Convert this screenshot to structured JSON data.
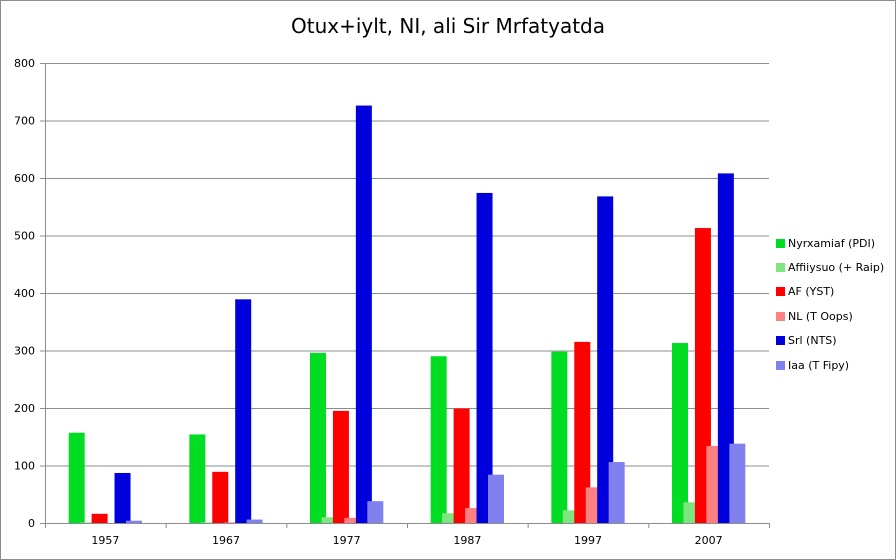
{
  "chart_data": {
    "type": "bar",
    "title": "Otux+iylt, NI, ali Sir Mrfatyatda",
    "xlabel": "",
    "ylabel": "",
    "ylim": [
      0,
      800
    ],
    "yticks": [
      0,
      100,
      200,
      300,
      400,
      500,
      600,
      700,
      800
    ],
    "grid": true,
    "legend_position": "right",
    "categories": [
      "1957",
      "1967",
      "1977",
      "1987",
      "1997",
      "2007"
    ],
    "series": [
      {
        "name": "Nyrxamiaf (PDI)",
        "color": "#00dd22",
        "values": [
          157,
          154,
          296,
          290,
          298,
          313
        ]
      },
      {
        "name": "Affiiysuo (+ Raip)",
        "color": "#7fe57f",
        "values": [
          1,
          1,
          10,
          17,
          22,
          36
        ]
      },
      {
        "name": "AF (YST)",
        "color": "#ff0000",
        "values": [
          16,
          89,
          195,
          199,
          315,
          513
        ]
      },
      {
        "name": "NL (T Oops)",
        "color": "#ff8080",
        "values": [
          0,
          1,
          9,
          26,
          62,
          134
        ]
      },
      {
        "name": "Srl (NTS)",
        "color": "#0000dd",
        "values": [
          87,
          389,
          726,
          574,
          568,
          608
        ]
      },
      {
        "name": "Iaa (T Fipy)",
        "color": "#8080ee",
        "values": [
          4,
          6,
          38,
          84,
          106,
          138
        ]
      }
    ]
  }
}
